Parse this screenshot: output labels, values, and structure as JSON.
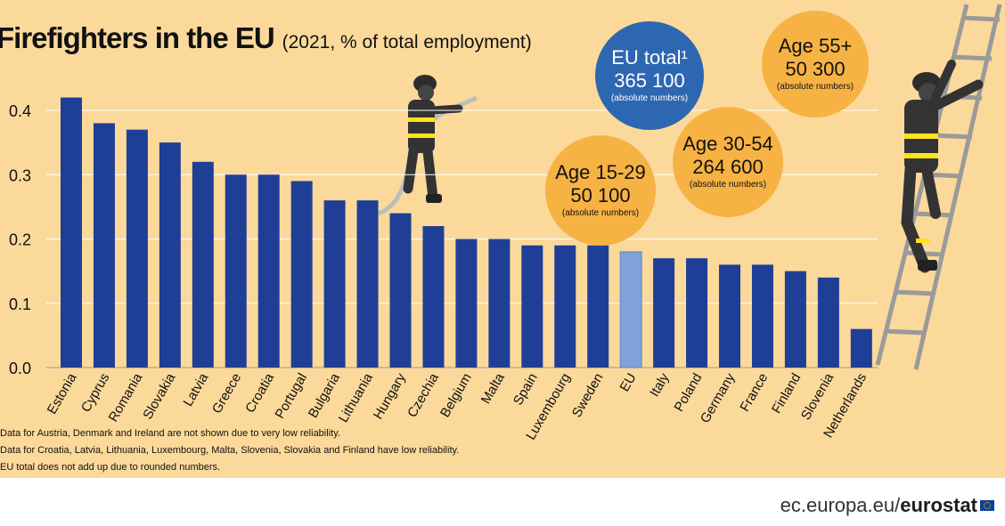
{
  "title": {
    "main": "Firefighters in the EU",
    "sub": "(2021, % of total employment)"
  },
  "chart_data": {
    "type": "bar",
    "title": "Firefighters in the EU",
    "subtitle": "(2021, % of total employment)",
    "xlabel": "",
    "ylabel": "",
    "ylim": [
      0,
      0.44
    ],
    "yticks": [
      0.0,
      0.1,
      0.2,
      0.3,
      0.4
    ],
    "ytick_labels": [
      "0.0",
      "0.1",
      "0.2",
      "0.3",
      "0.4"
    ],
    "grid": true,
    "categories": [
      "Estonia",
      "Cyprus",
      "Romania",
      "Slovakia",
      "Latvia",
      "Greece",
      "Croatia",
      "Portugal",
      "Bulgaria",
      "Lithuania",
      "Hungary",
      "Czechia",
      "Belgium",
      "Malta",
      "Spain",
      "Luxembourg",
      "Sweden",
      "EU",
      "Italy",
      "Poland",
      "Germany",
      "France",
      "Finland",
      "Slovenia",
      "Netherlands"
    ],
    "values": [
      0.42,
      0.38,
      0.37,
      0.35,
      0.32,
      0.3,
      0.3,
      0.29,
      0.26,
      0.26,
      0.24,
      0.22,
      0.2,
      0.2,
      0.19,
      0.19,
      0.19,
      0.18,
      0.17,
      0.17,
      0.16,
      0.16,
      0.15,
      0.14,
      0.06
    ],
    "highlight_category": "EU",
    "colors": {
      "bar": "#1f3f97",
      "highlight": "#7fa3d8",
      "grid": "#ffffff",
      "background": "#fbd99a"
    }
  },
  "bubbles": [
    {
      "id": "eu-total",
      "label": "EU total¹",
      "value": "365 100",
      "note": "(absolute numbers)",
      "color": "#2e67b1"
    },
    {
      "id": "age-15-29",
      "label": "Age 15-29",
      "value": "50 100",
      "note": "(absolute numbers)",
      "color": "#f7b244"
    },
    {
      "id": "age-30-54",
      "label": "Age 30-54",
      "value": "264 600",
      "note": "(absolute numbers)",
      "color": "#f7b244"
    },
    {
      "id": "age-55-plus",
      "label": "Age 55+",
      "value": "50 300",
      "note": "(absolute numbers)",
      "color": "#f7b244"
    }
  ],
  "notes": [
    "Data for Austria, Denmark and Ireland are not shown due to very low reliability.",
    "Data for Croatia, Latvia, Lithuania, Luxembourg, Malta, Slovenia, Slovakia and Finland have low reliability.",
    "EU total does not add up due to rounded numbers."
  ],
  "footer": {
    "domain": "ec.europa.eu/",
    "brand": "eurostat"
  }
}
